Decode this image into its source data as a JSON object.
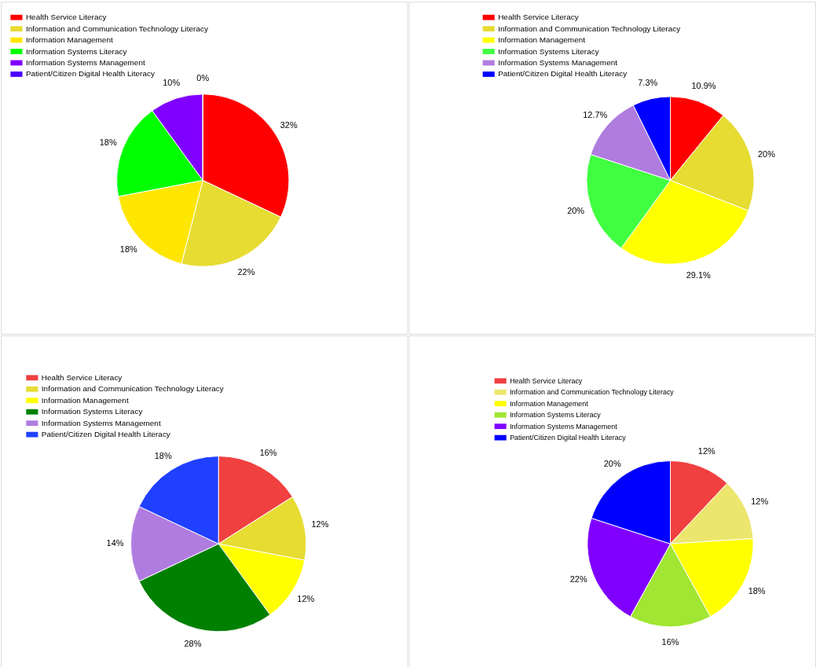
{
  "chart_data": [
    {
      "type": "pie",
      "legend": "top left",
      "categories": [
        "Health Service Literacy",
        "Information and Communication Technology Literacy",
        "Information Management",
        "Information Systems Literacy",
        "Information Systems Management",
        "Patient/Citizen Digital Health Literacy"
      ],
      "values": [
        32,
        22,
        18,
        18,
        10,
        0
      ],
      "colors": [
        "#ff0000",
        "#e6dc32",
        "#ffe600",
        "#00ff00",
        "#8000ff",
        "#4b00ff"
      ],
      "value_labels": [
        "32%",
        "22%",
        "18%",
        "18%",
        "10%",
        "0%"
      ]
    },
    {
      "type": "pie",
      "legend": "top left",
      "categories": [
        "Health Service Literacy",
        "Information and Communication Technology Literacy",
        "Information Management",
        "Information Systems Literacy",
        "Information Systems Management",
        "Patient/Citizen Digital Health Literacy"
      ],
      "values": [
        10.9,
        20,
        29.1,
        20,
        12.7,
        7.3
      ],
      "colors": [
        "#ff0000",
        "#e6dc32",
        "#ffff00",
        "#40ff40",
        "#b07ce0",
        "#0000ff"
      ],
      "value_labels": [
        "10.9%",
        "20%",
        "29.1%",
        "20%",
        "12.7%",
        "7.3%"
      ]
    },
    {
      "type": "pie",
      "legend": "top left",
      "categories": [
        "Health Service Literacy",
        "Information and Communication Technology Literacy",
        "Information Management",
        "Information Systems Literacy",
        "Information Systems Management",
        "Patient/Citizen Digital Health Literacy"
      ],
      "values": [
        16,
        12,
        12,
        28,
        14,
        18
      ],
      "colors": [
        "#f04040",
        "#e6dc32",
        "#ffff00",
        "#008000",
        "#b07ce0",
        "#2040ff"
      ],
      "value_labels": [
        "16%",
        "12%",
        "12%",
        "28%",
        "14%",
        "18%"
      ]
    },
    {
      "type": "pie",
      "legend": "top left",
      "categories": [
        "Health Service Literacy",
        "Information and Communication Technology Literacy",
        "Information Management",
        "Information Systems Literacy",
        "Information Systems Management",
        "Patient/Citizen Digital Health Literacy"
      ],
      "values": [
        12,
        12,
        18,
        16,
        22,
        20
      ],
      "colors": [
        "#f04040",
        "#ece66e",
        "#ffff00",
        "#a0e632",
        "#8000ff",
        "#0000ff"
      ],
      "value_labels": [
        "12%",
        "12%",
        "18%",
        "16%",
        "22%",
        "20%"
      ]
    }
  ]
}
